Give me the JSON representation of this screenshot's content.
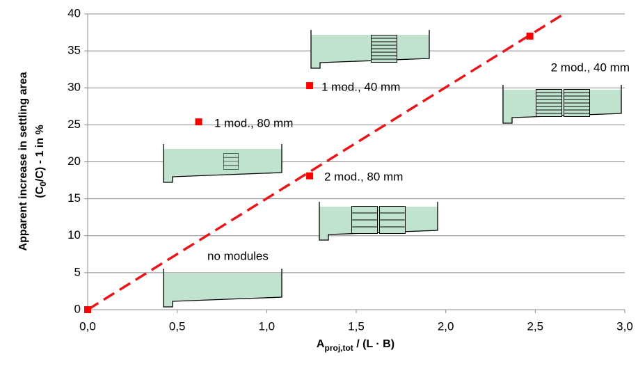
{
  "chart_data": {
    "type": "scatter",
    "x": [
      0,
      0.62,
      1.24,
      1.24,
      2.47
    ],
    "values": [
      0,
      25.4,
      30.3,
      18.1,
      37.0
    ],
    "color": "#ff0000",
    "trendline": {
      "x": [
        0,
        2.66
      ],
      "values": [
        0,
        40
      ],
      "color": "#e8161b",
      "dashed": true
    },
    "annotations": [
      "no modules",
      "1 mod., 80 mm",
      "1 mod., 40 mm",
      "2 mod., 80 mm",
      "2 mod., 40 mm"
    ],
    "x_label": {
      "main": "A",
      "sub": "proj,tot",
      "rest": " / (L · B)"
    },
    "y_label": {
      "line1": "Apparent increase in settling area",
      "line2_main": "(C",
      "line2_sub": "0",
      "line2_rest": "/C) - 1 in %"
    },
    "xlim": [
      0,
      3
    ],
    "xticks": [
      {
        "value": 0,
        "label": "0,0"
      },
      {
        "value": 0.5,
        "label": "0,5"
      },
      {
        "value": 1,
        "label": "1,0"
      },
      {
        "value": 1.5,
        "label": "1,5"
      },
      {
        "value": 2,
        "label": "2,0"
      },
      {
        "value": 2.5,
        "label": "2,5"
      },
      {
        "value": 3,
        "label": "3,0"
      }
    ],
    "ylim": [
      0,
      40
    ],
    "yticks": [
      0,
      5,
      10,
      15,
      20,
      25,
      30,
      35,
      40
    ],
    "grid": true
  }
}
